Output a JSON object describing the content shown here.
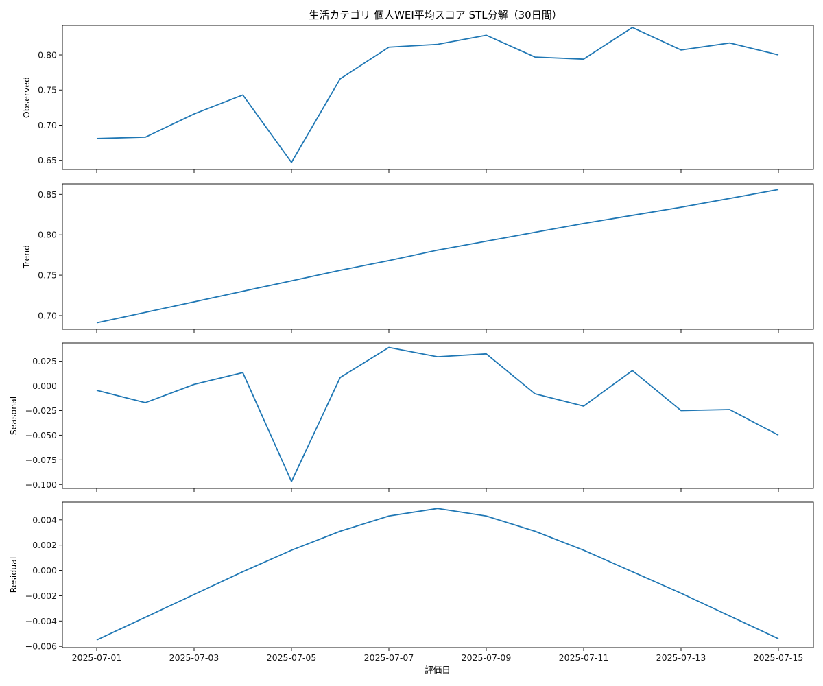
{
  "title": "生活カテゴリ 個人WEI平均スコア STL分解（30日間）",
  "xlabel": "評価日",
  "line_color": "#1f77b4",
  "x_ticks": [
    "2025-07-01",
    "2025-07-03",
    "2025-07-05",
    "2025-07-07",
    "2025-07-09",
    "2025-07-11",
    "2025-07-13",
    "2025-07-15"
  ],
  "chart_data": {
    "type": "line",
    "title": "生活カテゴリ 個人WEI平均スコア STL分解（30日間）",
    "xlabel": "評価日",
    "x": [
      "2025-07-01",
      "2025-07-02",
      "2025-07-03",
      "2025-07-04",
      "2025-07-05",
      "2025-07-06",
      "2025-07-07",
      "2025-07-08",
      "2025-07-09",
      "2025-07-10",
      "2025-07-11",
      "2025-07-12",
      "2025-07-13",
      "2025-07-14",
      "2025-07-15"
    ],
    "panels": [
      {
        "ylabel": "Observed",
        "ylim": [
          0.637,
          0.842
        ],
        "yticks": [
          0.65,
          0.7,
          0.75,
          0.8
        ],
        "tick_labels": [
          "0.65",
          "0.70",
          "0.75",
          "0.80"
        ],
        "values": [
          0.681,
          0.683,
          0.716,
          0.743,
          0.647,
          0.766,
          0.811,
          0.815,
          0.828,
          0.797,
          0.794,
          0.839,
          0.807,
          0.817,
          0.8
        ]
      },
      {
        "ylabel": "Trend",
        "ylim": [
          0.683,
          0.863
        ],
        "yticks": [
          0.7,
          0.75,
          0.8,
          0.85
        ],
        "tick_labels": [
          "0.70",
          "0.75",
          "0.80",
          "0.85"
        ],
        "values": [
          0.691,
          0.704,
          0.717,
          0.73,
          0.743,
          0.756,
          0.768,
          0.781,
          0.792,
          0.803,
          0.814,
          0.824,
          0.834,
          0.845,
          0.856
        ]
      },
      {
        "ylabel": "Seasonal",
        "ylim": [
          -0.104,
          0.0435
        ],
        "yticks": [
          -0.1,
          -0.075,
          -0.05,
          -0.025,
          0.0,
          0.025
        ],
        "tick_labels": [
          "−0.100",
          "−0.075",
          "−0.050",
          "−0.025",
          "0.000",
          "0.025"
        ],
        "values": [
          -0.0045,
          -0.017,
          0.0015,
          0.0135,
          -0.097,
          0.0085,
          0.039,
          0.0295,
          0.0325,
          -0.008,
          -0.0205,
          0.0155,
          -0.025,
          -0.024,
          -0.05
        ]
      },
      {
        "ylabel": "Residual",
        "ylim": [
          -0.0061,
          0.0054
        ],
        "yticks": [
          -0.006,
          -0.004,
          -0.002,
          0.0,
          0.002,
          0.004
        ],
        "tick_labels": [
          "−0.006",
          "−0.004",
          "−0.002",
          "0.000",
          "0.002",
          "0.004"
        ],
        "values": [
          -0.0055,
          -0.0037,
          -0.0019,
          -0.0001,
          0.0016,
          0.0031,
          0.0043,
          0.0049,
          0.0043,
          0.0031,
          0.0016,
          -0.0001,
          -0.0018,
          -0.0036,
          -0.0054
        ]
      }
    ]
  }
}
